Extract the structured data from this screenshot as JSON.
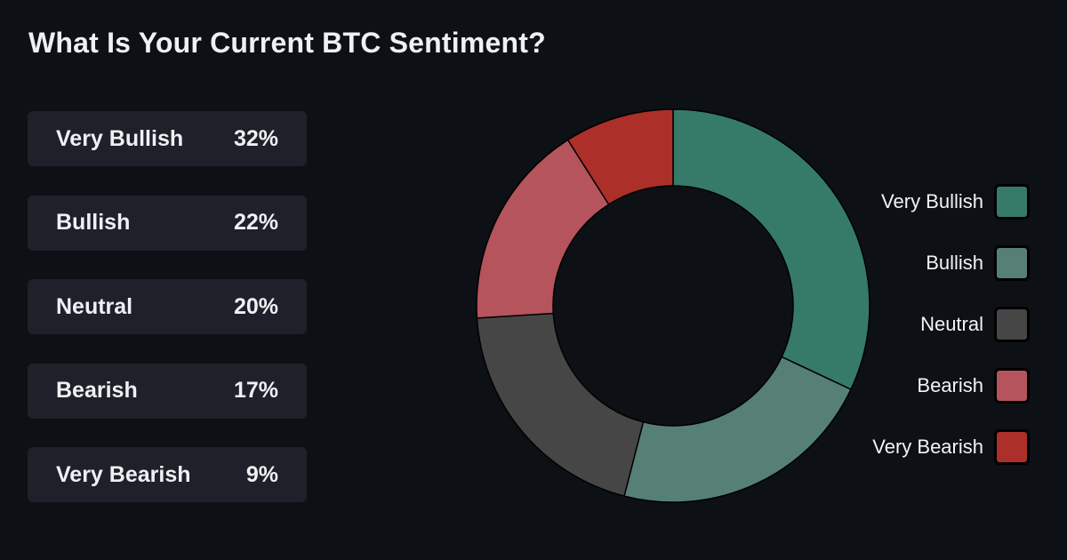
{
  "title": "What Is Your Current BTC Sentiment?",
  "chart_data": {
    "type": "pie",
    "title": "What Is Your Current BTC Sentiment?",
    "categories": [
      "Very Bullish",
      "Bullish",
      "Neutral",
      "Bearish",
      "Very Bearish"
    ],
    "values": [
      32,
      22,
      20,
      17,
      9
    ],
    "value_labels": [
      "32%",
      "22%",
      "20%",
      "17%",
      "9%"
    ],
    "colors": [
      "#367a6a",
      "#567f75",
      "#464646",
      "#b5545c",
      "#ac2f29"
    ],
    "donut": true,
    "legend_position": "right"
  }
}
